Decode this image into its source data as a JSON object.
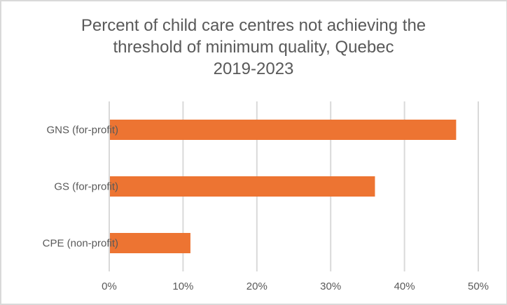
{
  "chart_data": {
    "type": "bar",
    "orientation": "horizontal",
    "title_lines": [
      "Percent of child care centres not achieving the",
      "threshold of minimum quality, Quebec",
      "2019-2023"
    ],
    "categories": [
      "GNS (for-profit)",
      "GS (for-profit)",
      "CPE (non-profit)"
    ],
    "values": [
      47,
      36,
      11
    ],
    "unit": "%",
    "xlim": [
      0,
      50
    ],
    "xticks": [
      0,
      10,
      20,
      30,
      40,
      50
    ],
    "xtick_labels": [
      "0%",
      "10%",
      "20%",
      "30%",
      "40%",
      "50%"
    ],
    "xlabel": "",
    "ylabel": "",
    "grid": true,
    "legend": "none",
    "colors": {
      "bar": "#ed7432",
      "grid": "#d9d9d9",
      "text": "#595959"
    }
  }
}
